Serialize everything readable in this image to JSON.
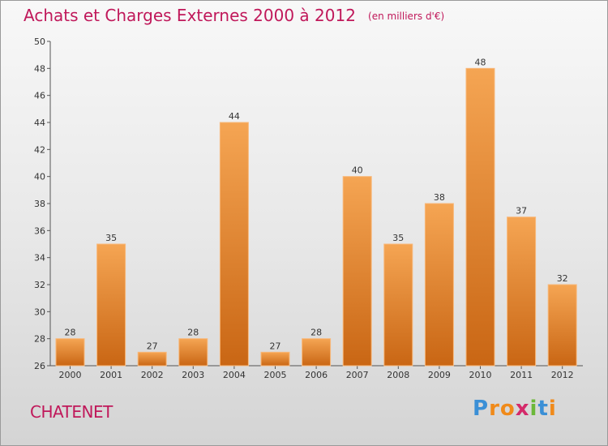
{
  "header": {
    "title": "Achats et Charges Externes 2000 à 2012",
    "unit": "(en milliers d'€)"
  },
  "footer": {
    "commune": "CHATENET",
    "brand": [
      "P",
      "r",
      "o",
      "x",
      "i",
      "t",
      "i"
    ]
  },
  "colors": {
    "title": "#c0185a",
    "bar_top": "#f5a553",
    "bar_bottom": "#c96614",
    "bar_border": "#f8b87a",
    "brand": [
      "#3a8fd6",
      "#f08a1a",
      "#f08a1a",
      "#d42a6a",
      "#6cb83a",
      "#3a8fd6",
      "#f08a1a"
    ]
  },
  "chart_data": {
    "type": "bar",
    "title": "Achats et Charges Externes 2000 à 2012",
    "categories": [
      "2000",
      "2001",
      "2002",
      "2003",
      "2004",
      "2005",
      "2006",
      "2007",
      "2008",
      "2009",
      "2010",
      "2011",
      "2012"
    ],
    "values": [
      28,
      35,
      27,
      28,
      44,
      27,
      28,
      40,
      35,
      38,
      48,
      37,
      32
    ],
    "ylim": [
      26,
      50
    ],
    "yticks": [
      26,
      28,
      30,
      32,
      34,
      36,
      38,
      40,
      42,
      44,
      46,
      48,
      50
    ],
    "grid": false,
    "legend": "none",
    "data_labels": true
  }
}
